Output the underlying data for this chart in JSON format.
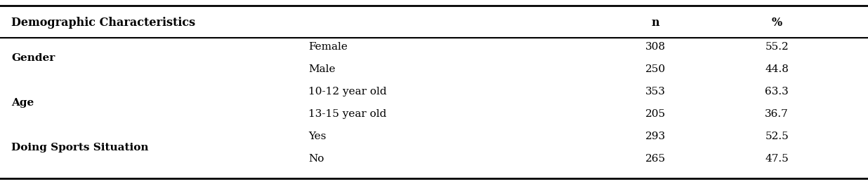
{
  "header": {
    "col1": "Demographic Characteristics",
    "n": "n",
    "pct": "%"
  },
  "row_groups": [
    {
      "category": "Gender",
      "rows": [
        {
          "subcategory": "Female",
          "n": "308",
          "pct": "55.2"
        },
        {
          "subcategory": "Male",
          "n": "250",
          "pct": "44.8"
        }
      ]
    },
    {
      "category": "Age",
      "rows": [
        {
          "subcategory": "10-12 year old",
          "n": "353",
          "pct": "63.3"
        },
        {
          "subcategory": "13-15 year old",
          "n": "205",
          "pct": "36.7"
        }
      ]
    },
    {
      "category": "Doing Sports Situation",
      "rows": [
        {
          "subcategory": "Yes",
          "n": "293",
          "pct": "52.5"
        },
        {
          "subcategory": "No",
          "n": "265",
          "pct": "47.5"
        }
      ]
    }
  ],
  "col_x": {
    "category": 0.013,
    "subcategory": 0.355,
    "n": 0.755,
    "pct": 0.895
  },
  "header_fontsize": 11.5,
  "cell_fontsize": 11.0,
  "bg_color": "#ffffff",
  "line_color": "#000000"
}
